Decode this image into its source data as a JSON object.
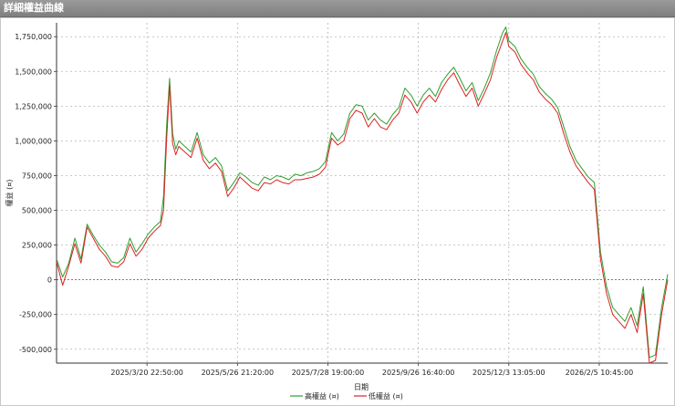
{
  "window": {
    "title": "詳細權益曲線"
  },
  "chart_data": {
    "type": "line",
    "title": "",
    "xlabel": "日期",
    "ylabel": "權益 (¤)",
    "ylim": [
      -600000,
      1850000
    ],
    "yticks": [
      -500000,
      -250000,
      0,
      250000,
      500000,
      750000,
      1000000,
      1250000,
      1500000,
      1750000
    ],
    "ytick_labels": [
      "-500,000",
      "-250,000",
      "0",
      "250,000",
      "500,000",
      "750,000",
      "1,000,000",
      "1,250,000",
      "1,500,000",
      "1,750,000"
    ],
    "xticks": [
      {
        "label": "2025/3/20 22:50:00",
        "t": 0.148
      },
      {
        "label": "2025/5/26 21:20:00",
        "t": 0.296
      },
      {
        "label": "2025/7/28 19:00:00",
        "t": 0.444
      },
      {
        "label": "2025/9/26 16:40:00",
        "t": 0.592
      },
      {
        "label": "2025/12/3 13:05:00",
        "t": 0.74
      },
      {
        "label": "2026/2/5 10:45:00",
        "t": 0.888
      }
    ],
    "grid": true,
    "legend_position": "bottom-right",
    "series": [
      {
        "name": "高權益 (¤)",
        "color": "#2e9e2e",
        "t": [
          0.0,
          0.01,
          0.02,
          0.03,
          0.04,
          0.05,
          0.06,
          0.07,
          0.08,
          0.09,
          0.1,
          0.11,
          0.12,
          0.13,
          0.14,
          0.15,
          0.16,
          0.17,
          0.175,
          0.18,
          0.185,
          0.19,
          0.195,
          0.2,
          0.21,
          0.22,
          0.23,
          0.24,
          0.25,
          0.26,
          0.27,
          0.28,
          0.29,
          0.3,
          0.31,
          0.32,
          0.33,
          0.34,
          0.35,
          0.36,
          0.37,
          0.38,
          0.39,
          0.4,
          0.41,
          0.42,
          0.43,
          0.44,
          0.45,
          0.46,
          0.47,
          0.48,
          0.49,
          0.5,
          0.51,
          0.52,
          0.53,
          0.54,
          0.55,
          0.56,
          0.57,
          0.58,
          0.59,
          0.6,
          0.61,
          0.62,
          0.63,
          0.64,
          0.65,
          0.66,
          0.67,
          0.68,
          0.69,
          0.7,
          0.71,
          0.72,
          0.73,
          0.735,
          0.74,
          0.75,
          0.76,
          0.77,
          0.78,
          0.79,
          0.8,
          0.81,
          0.82,
          0.83,
          0.84,
          0.85,
          0.86,
          0.87,
          0.88,
          0.89,
          0.9,
          0.91,
          0.92,
          0.93,
          0.94,
          0.95,
          0.96,
          0.97,
          0.98,
          0.99,
          1.0
        ],
        "values": [
          150000,
          20000,
          120000,
          300000,
          150000,
          400000,
          320000,
          250000,
          200000,
          130000,
          120000,
          160000,
          300000,
          200000,
          260000,
          330000,
          380000,
          420000,
          600000,
          1100000,
          1450000,
          1050000,
          940000,
          1000000,
          960000,
          920000,
          1060000,
          900000,
          840000,
          880000,
          820000,
          640000,
          700000,
          770000,
          740000,
          700000,
          680000,
          740000,
          720000,
          750000,
          740000,
          720000,
          760000,
          750000,
          770000,
          780000,
          800000,
          850000,
          1060000,
          1000000,
          1050000,
          1200000,
          1260000,
          1250000,
          1150000,
          1200000,
          1150000,
          1120000,
          1190000,
          1240000,
          1380000,
          1330000,
          1250000,
          1330000,
          1380000,
          1320000,
          1420000,
          1480000,
          1530000,
          1450000,
          1360000,
          1420000,
          1290000,
          1380000,
          1490000,
          1650000,
          1780000,
          1820000,
          1720000,
          1680000,
          1590000,
          1530000,
          1480000,
          1390000,
          1340000,
          1300000,
          1240000,
          1100000,
          960000,
          860000,
          800000,
          740000,
          700000,
          200000,
          -50000,
          -200000,
          -250000,
          -300000,
          -200000,
          -330000,
          -50000,
          -560000,
          -540000,
          -200000,
          40000
        ]
      },
      {
        "name": "低權益 (¤)",
        "color": "#dd2222",
        "t": [
          0.0,
          0.01,
          0.02,
          0.03,
          0.04,
          0.05,
          0.06,
          0.07,
          0.08,
          0.09,
          0.1,
          0.11,
          0.12,
          0.13,
          0.14,
          0.15,
          0.16,
          0.17,
          0.175,
          0.18,
          0.185,
          0.19,
          0.195,
          0.2,
          0.21,
          0.22,
          0.23,
          0.24,
          0.25,
          0.26,
          0.27,
          0.28,
          0.29,
          0.3,
          0.31,
          0.32,
          0.33,
          0.34,
          0.35,
          0.36,
          0.37,
          0.38,
          0.39,
          0.4,
          0.41,
          0.42,
          0.43,
          0.44,
          0.45,
          0.46,
          0.47,
          0.48,
          0.49,
          0.5,
          0.51,
          0.52,
          0.53,
          0.54,
          0.55,
          0.56,
          0.57,
          0.58,
          0.59,
          0.6,
          0.61,
          0.62,
          0.63,
          0.64,
          0.65,
          0.66,
          0.67,
          0.68,
          0.69,
          0.7,
          0.71,
          0.72,
          0.73,
          0.735,
          0.74,
          0.75,
          0.76,
          0.77,
          0.78,
          0.79,
          0.8,
          0.81,
          0.82,
          0.83,
          0.84,
          0.85,
          0.86,
          0.87,
          0.88,
          0.89,
          0.9,
          0.91,
          0.92,
          0.93,
          0.94,
          0.95,
          0.96,
          0.97,
          0.98,
          0.99,
          1.0
        ],
        "values": [
          130000,
          -40000,
          100000,
          260000,
          120000,
          380000,
          300000,
          220000,
          170000,
          100000,
          90000,
          130000,
          260000,
          170000,
          220000,
          300000,
          350000,
          390000,
          500000,
          1000000,
          1400000,
          980000,
          900000,
          960000,
          920000,
          880000,
          1020000,
          860000,
          800000,
          840000,
          780000,
          600000,
          660000,
          740000,
          700000,
          660000,
          640000,
          700000,
          690000,
          720000,
          700000,
          690000,
          720000,
          720000,
          730000,
          740000,
          760000,
          810000,
          1020000,
          970000,
          1000000,
          1160000,
          1220000,
          1200000,
          1100000,
          1160000,
          1100000,
          1080000,
          1150000,
          1200000,
          1330000,
          1280000,
          1200000,
          1280000,
          1330000,
          1280000,
          1370000,
          1440000,
          1490000,
          1400000,
          1320000,
          1380000,
          1250000,
          1340000,
          1440000,
          1600000,
          1720000,
          1780000,
          1680000,
          1640000,
          1550000,
          1490000,
          1440000,
          1350000,
          1300000,
          1260000,
          1200000,
          1050000,
          920000,
          820000,
          760000,
          700000,
          650000,
          150000,
          -100000,
          -250000,
          -300000,
          -350000,
          -250000,
          -380000,
          -100000,
          -600000,
          -580000,
          -250000,
          0
        ]
      }
    ]
  }
}
